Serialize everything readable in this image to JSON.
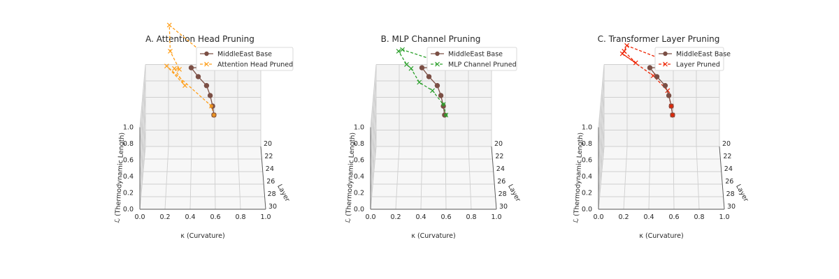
{
  "chart_data": [
    {
      "type": "line",
      "title": "A. Attention Head Pruning",
      "xlabel": "κ (Curvature)",
      "ylabel": "Layer",
      "zlabel": "ℒ (Thermodynamic Length)",
      "xlim": [
        0.0,
        1.0
      ],
      "ylim": [
        20,
        30
      ],
      "zlim": [
        0.0,
        1.0
      ],
      "x_ticks": [
        "0.0",
        "0.2",
        "0.4",
        "0.6",
        "0.8",
        "1.0"
      ],
      "y_ticks": [
        "20",
        "22",
        "24",
        "26",
        "28",
        "30"
      ],
      "z_ticks": [
        "0.0",
        "0.2",
        "0.4",
        "0.6",
        "0.8",
        "1.0"
      ],
      "legend_position": "top-right",
      "series": [
        {
          "name": "MiddleEast Base",
          "color": "#7b4f45",
          "marker": "circle",
          "linestyle": "solid",
          "points": [
            [
              0.62,
              20.0,
              1.0
            ],
            [
              0.55,
              20.9,
              1.06
            ],
            [
              0.47,
              21.8,
              1.1
            ],
            [
              0.4,
              22.6,
              1.16
            ],
            [
              0.46,
              23.5,
              1.12
            ],
            [
              0.53,
              24.4,
              1.08
            ],
            [
              0.56,
              25.2,
              1.02
            ],
            [
              0.58,
              26.1,
              0.96
            ],
            [
              0.59,
              27.0,
              0.92
            ]
          ]
        },
        {
          "name": "Attention Head Pruned",
          "color": "#ff9f1a",
          "marker": "x",
          "linestyle": "dashed",
          "points": [
            [
              0.62,
              20.0,
              1.0
            ],
            [
              0.21,
              20.9,
              1.55
            ],
            [
              0.22,
              21.8,
              1.3
            ],
            [
              0.3,
              22.6,
              1.14
            ],
            [
              0.26,
              23.5,
              1.22
            ],
            [
              0.35,
              24.4,
              1.08
            ],
            [
              0.2,
              25.2,
              1.38
            ],
            [
              0.57,
              26.1,
              0.96
            ],
            [
              0.59,
              27.0,
              0.92
            ]
          ]
        }
      ]
    },
    {
      "type": "line",
      "title": "B. MLP Channel Pruning",
      "xlabel": "κ (Curvature)",
      "ylabel": "Layer",
      "zlabel": "ℒ (Thermodynamic Length)",
      "xlim": [
        0.0,
        1.0
      ],
      "ylim": [
        20,
        30
      ],
      "zlim": [
        0.0,
        1.0
      ],
      "x_ticks": [
        "0.0",
        "0.2",
        "0.4",
        "0.6",
        "0.8",
        "1.0"
      ],
      "y_ticks": [
        "20",
        "22",
        "24",
        "26",
        "28",
        "30"
      ],
      "z_ticks": [
        "0.0",
        "0.2",
        "0.4",
        "0.6",
        "0.8",
        "1.0"
      ],
      "legend_position": "top-right",
      "series": [
        {
          "name": "MiddleEast Base",
          "color": "#7b4f45",
          "marker": "circle",
          "linestyle": "solid",
          "points": [
            [
              0.62,
              20.0,
              1.0
            ],
            [
              0.55,
              20.9,
              1.06
            ],
            [
              0.47,
              21.8,
              1.1
            ],
            [
              0.4,
              22.6,
              1.16
            ],
            [
              0.46,
              23.5,
              1.12
            ],
            [
              0.53,
              24.4,
              1.08
            ],
            [
              0.56,
              25.2,
              1.02
            ],
            [
              0.58,
              26.1,
              0.96
            ],
            [
              0.59,
              27.0,
              0.92
            ]
          ]
        },
        {
          "name": "MLP Channel Pruned",
          "color": "#2ca02c",
          "marker": "x",
          "linestyle": "dashed",
          "points": [
            [
              0.62,
              20.0,
              1.0
            ],
            [
              0.23,
              20.9,
              1.25
            ],
            [
              0.2,
              21.8,
              1.3
            ],
            [
              0.27,
              22.6,
              1.2
            ],
            [
              0.31,
              23.5,
              1.22
            ],
            [
              0.38,
              24.4,
              1.12
            ],
            [
              0.49,
              25.2,
              1.08
            ],
            [
              0.58,
              26.1,
              0.98
            ],
            [
              0.6,
              27.0,
              0.92
            ]
          ]
        }
      ]
    },
    {
      "type": "line",
      "title": "C. Transformer Layer Pruning",
      "xlabel": "κ (Curvature)",
      "ylabel": "Layer",
      "zlabel": "ℒ (Thermodynamic Length)",
      "xlim": [
        0.0,
        1.0
      ],
      "ylim": [
        20,
        30
      ],
      "zlim": [
        0.0,
        1.0
      ],
      "x_ticks": [
        "0.0",
        "0.2",
        "0.4",
        "0.6",
        "0.8",
        "1.0"
      ],
      "y_ticks": [
        "20",
        "22",
        "24",
        "26",
        "28",
        "30"
      ],
      "z_ticks": [
        "0.0",
        "0.2",
        "0.4",
        "0.6",
        "0.8",
        "1.0"
      ],
      "legend_position": "top-right",
      "series": [
        {
          "name": "MiddleEast Base",
          "color": "#7b4f45",
          "marker": "circle",
          "linestyle": "solid",
          "points": [
            [
              0.62,
              20.0,
              1.0
            ],
            [
              0.55,
              20.9,
              1.06
            ],
            [
              0.47,
              21.8,
              1.1
            ],
            [
              0.4,
              22.6,
              1.16
            ],
            [
              0.46,
              23.5,
              1.12
            ],
            [
              0.53,
              24.4,
              1.08
            ],
            [
              0.56,
              25.2,
              1.02
            ],
            [
              0.58,
              26.1,
              0.96
            ],
            [
              0.59,
              27.0,
              0.92
            ]
          ]
        },
        {
          "name": "Layer Pruned",
          "color": "#ee2200",
          "marker": "x",
          "linestyle": "dashed",
          "points": [
            [
              0.62,
              20.0,
              1.0
            ],
            [
              0.2,
              20.9,
              1.3
            ],
            [
              0.18,
              21.8,
              1.3
            ],
            [
              0.28,
              22.6,
              1.22
            ],
            [
              0.17,
              23.5,
              1.4
            ],
            [
              0.43,
              24.4,
              1.2
            ],
            [
              0.55,
              25.2,
              1.08
            ],
            [
              0.58,
              26.1,
              0.96
            ],
            [
              0.59,
              27.0,
              0.92
            ]
          ]
        }
      ]
    }
  ]
}
